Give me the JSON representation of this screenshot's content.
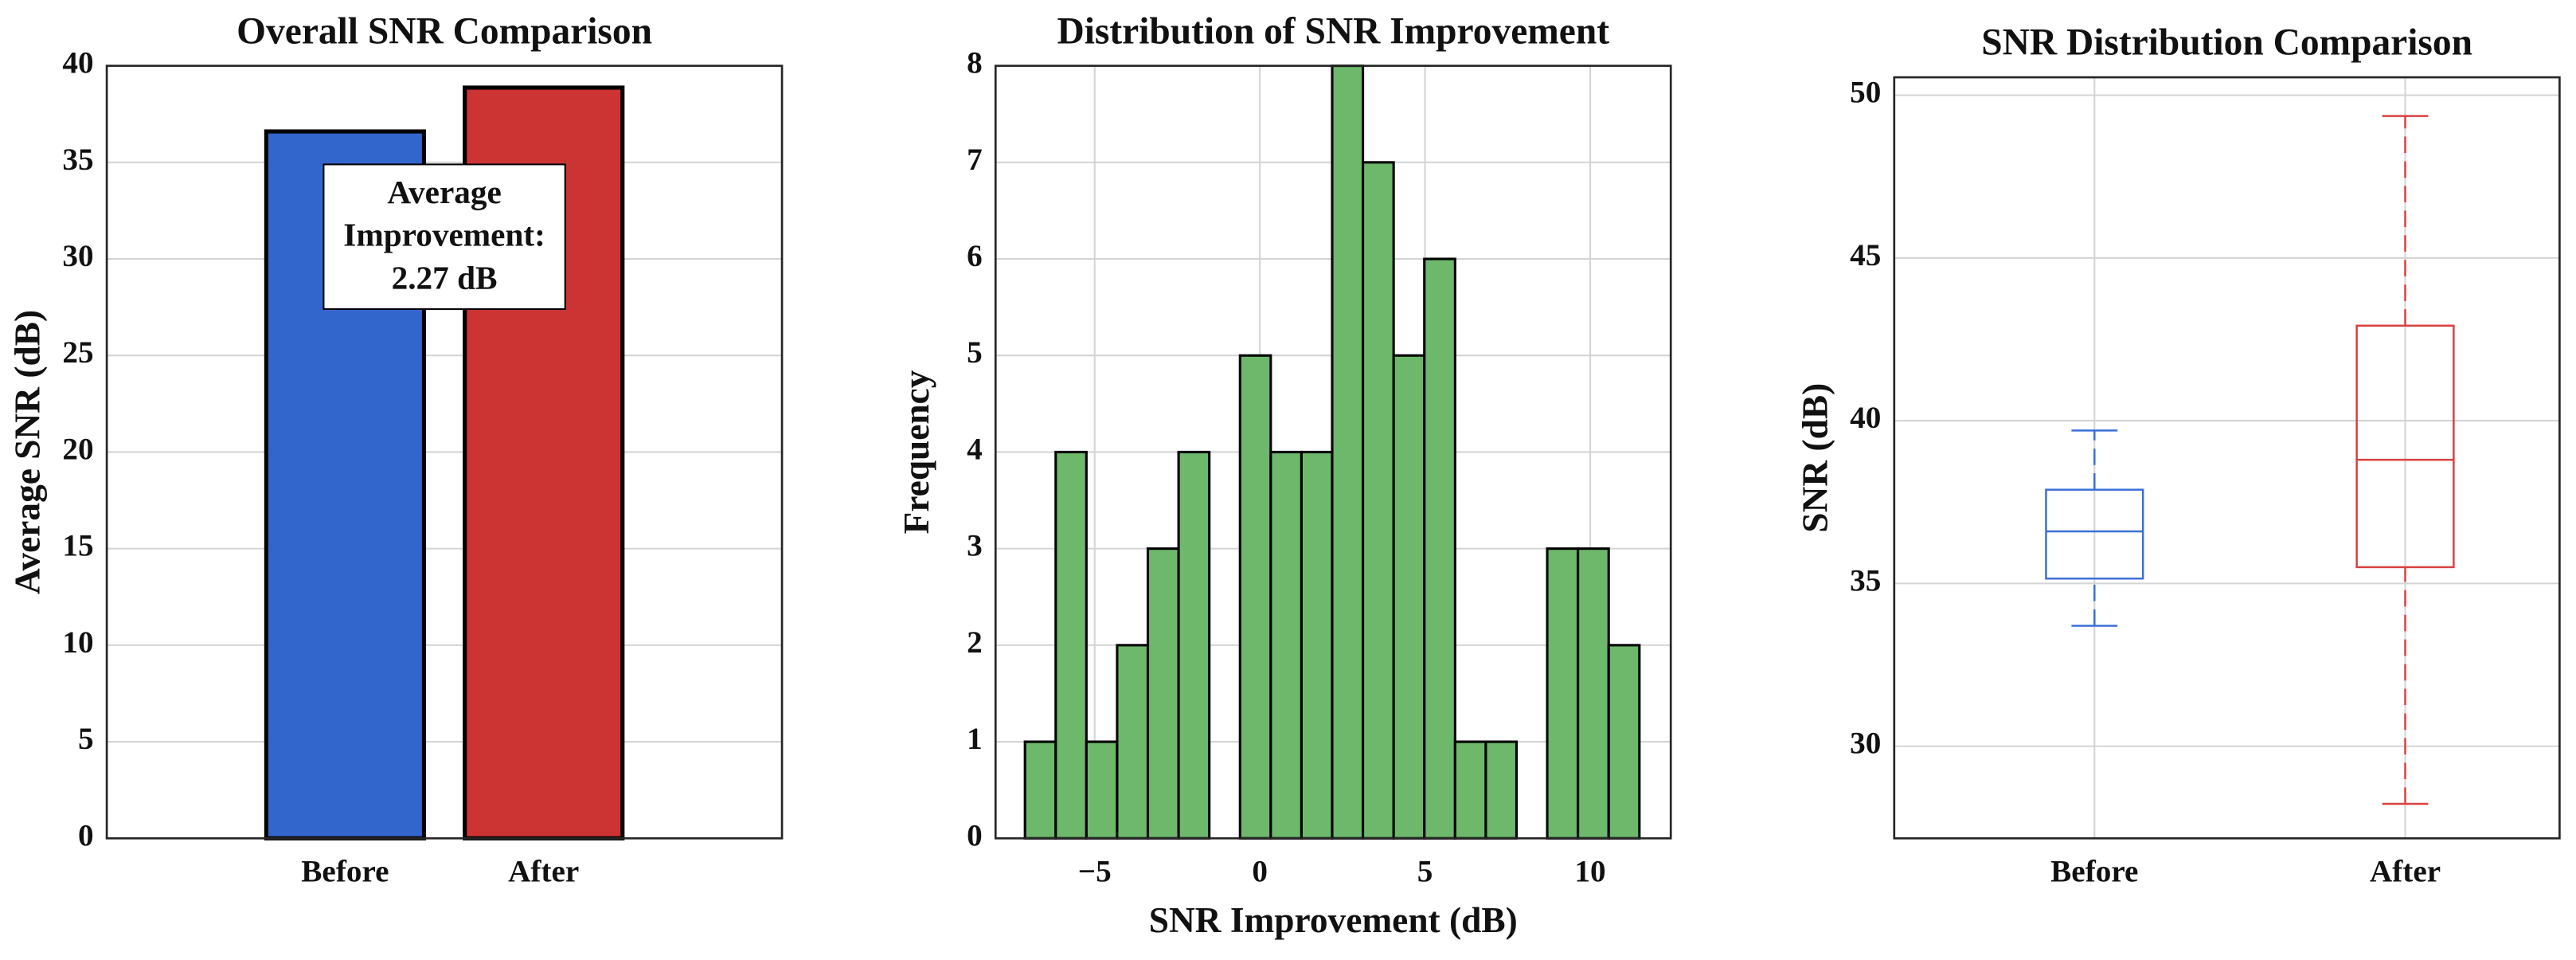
{
  "chart_data": [
    {
      "type": "bar",
      "title": "Overall SNR Comparison",
      "y_label": "Average SNR (dB)",
      "categories": [
        "Before",
        "After"
      ],
      "values": [
        36.6,
        38.87
      ],
      "colors": [
        "#3366cc",
        "#cc3333"
      ],
      "ylim": [
        0,
        40
      ],
      "yticks": [
        0,
        5,
        10,
        15,
        20,
        25,
        30,
        35,
        40
      ],
      "grid": true,
      "annotation": [
        "Average",
        "Improvement:",
        "2.27 dB"
      ]
    },
    {
      "type": "histogram",
      "title": "Distribution of SNR Improvement",
      "x_label": "SNR Improvement (dB)",
      "y_label": "Frequency",
      "bins": [
        -7.11,
        -6.18,
        -5.25,
        -4.32,
        -3.39,
        -2.46,
        -1.53,
        -0.6,
        0.33,
        1.26,
        2.19,
        3.12,
        4.05,
        4.98,
        5.91,
        6.84,
        7.77,
        8.7,
        9.63,
        10.56,
        11.49
      ],
      "values": [
        1,
        4,
        1,
        2,
        3,
        4,
        0,
        5,
        4,
        4,
        8,
        7,
        5,
        6,
        1,
        1,
        0,
        3,
        3,
        2
      ],
      "color": "#6db86b",
      "xlim": [
        -8.0,
        12.44
      ],
      "xticks": [
        {
          "value": -5,
          "label": "−5"
        },
        0,
        5,
        10
      ],
      "ylim": [
        0,
        8
      ],
      "yticks": [
        0,
        1,
        2,
        3,
        4,
        5,
        6,
        7,
        8
      ],
      "grid": true
    },
    {
      "type": "box",
      "title": "SNR Distribution Comparison",
      "y_label": "SNR (dB)",
      "categories": [
        "Before",
        "After"
      ],
      "colors": [
        "#3a6fd8",
        "#d94040"
      ],
      "stats": [
        {
          "min": 33.7,
          "q1": 35.15,
          "median": 36.6,
          "q3": 37.88,
          "max": 39.7
        },
        {
          "min": 28.23,
          "q1": 35.5,
          "median": 38.8,
          "q3": 42.92,
          "max": 49.36
        }
      ],
      "ylim": [
        27.17,
        50.55
      ],
      "yticks": [
        30,
        35,
        40,
        45,
        50
      ],
      "grid": true
    }
  ]
}
